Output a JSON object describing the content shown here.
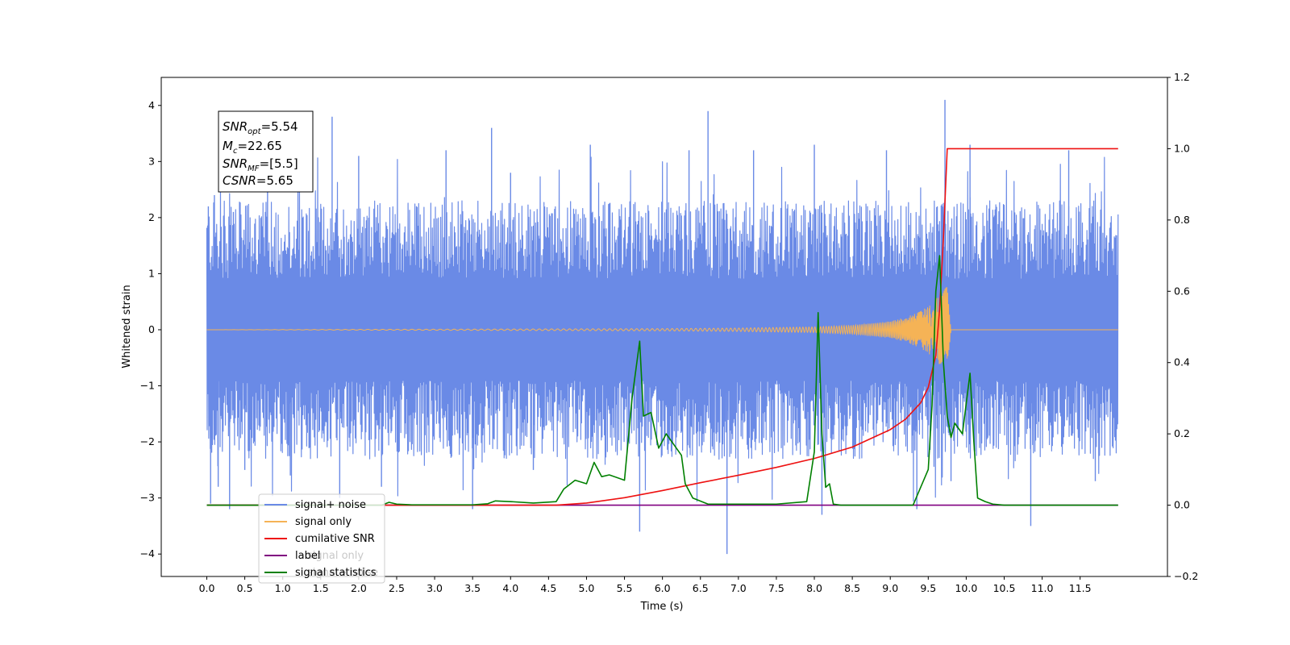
{
  "chart_data": {
    "type": "line",
    "xlabel": "Time (s)",
    "ylabel": "Whitened strain",
    "x_ticks": [
      "0.0",
      "0.5",
      "1.0",
      "1.5",
      "2.0",
      "2.5",
      "3.0",
      "3.5",
      "4.0",
      "4.5",
      "5.0",
      "5.5",
      "6.0",
      "6.5",
      "7.0",
      "7.5",
      "8.0",
      "8.5",
      "9.0",
      "9.5",
      "10.0",
      "10.5",
      "11.0",
      "11.5"
    ],
    "xlim": [
      -0.6,
      12.65
    ],
    "ylim_left": [
      -4.4,
      4.5
    ],
    "yticks_left": [
      "4",
      "3",
      "2",
      "1",
      "0",
      "−1",
      "−2",
      "−3",
      "−4"
    ],
    "ylim_right": [
      -0.2,
      1.2
    ],
    "yticks_right": [
      "1.2",
      "1.0",
      "0.8",
      "0.6",
      "0.4",
      "0.2",
      "0.0",
      "−0.2"
    ],
    "annotation": {
      "line1": {
        "base": "SNR",
        "sub": "opt",
        "rest": "=5.54"
      },
      "line2": {
        "base": "M",
        "sub": "c",
        "rest": "=22.65"
      },
      "line3": {
        "base": "SNR",
        "sub": "MF",
        "rest": "=[5.5]"
      },
      "line4": {
        "base": "CSNR",
        "sub": "",
        "rest": "=5.65"
      }
    },
    "legend": {
      "placement": "lower-left",
      "entries": [
        "signal+ noise",
        "signal only",
        "cumilative SNR",
        "label",
        "signal statistics"
      ],
      "hidden_overlaps": [
        "signal only",
        "signal+ noise"
      ]
    },
    "colors": {
      "noise": "#6a8ae6",
      "signal": "#f5b356",
      "snr": "#ee1111",
      "label": "#800080",
      "stats": "#008000"
    },
    "series": [
      {
        "name": "signal+ noise",
        "axis": "left",
        "x_range": [
          0.0,
          12.0
        ],
        "typical_range": [
          -2.2,
          2.4
        ],
        "spikes": [
          [
            0.02,
            2.2
          ],
          [
            0.05,
            -3.1
          ],
          [
            0.1,
            2.4
          ],
          [
            0.15,
            -2.8
          ],
          [
            0.3,
            -3.2
          ],
          [
            0.35,
            2.1
          ],
          [
            0.5,
            -2.5
          ],
          [
            0.8,
            3.4
          ],
          [
            1.1,
            -2.6
          ],
          [
            1.65,
            3.8
          ],
          [
            1.75,
            -3.0
          ],
          [
            2.0,
            3.1
          ],
          [
            2.3,
            -2.8
          ],
          [
            3.15,
            3.2
          ],
          [
            3.5,
            -3.2
          ],
          [
            3.75,
            3.6
          ],
          [
            4.0,
            2.8
          ],
          [
            4.3,
            -2.5
          ],
          [
            5.05,
            3.3
          ],
          [
            5.7,
            -3.6
          ],
          [
            6.35,
            3.2
          ],
          [
            6.6,
            3.9
          ],
          [
            6.85,
            -4.0
          ],
          [
            7.2,
            3.2
          ],
          [
            8.0,
            3.3
          ],
          [
            8.1,
            -3.3
          ],
          [
            8.95,
            3.2
          ],
          [
            9.35,
            -3.2
          ],
          [
            9.72,
            4.1
          ],
          [
            9.8,
            -2.7
          ],
          [
            10.05,
            3.3
          ],
          [
            10.85,
            -3.5
          ],
          [
            11.35,
            3.2
          ],
          [
            11.7,
            -2.7
          ]
        ]
      },
      {
        "name": "signal only",
        "axis": "left",
        "x": [
          0.0,
          6.0,
          7.0,
          8.0,
          8.5,
          9.0,
          9.2,
          9.4,
          9.5,
          9.6,
          9.7,
          9.75,
          9.8,
          12.0
        ],
        "envelope": [
          0.0,
          0.02,
          0.03,
          0.05,
          0.08,
          0.15,
          0.22,
          0.33,
          0.42,
          0.55,
          0.7,
          0.78,
          0.0,
          0.0
        ]
      },
      {
        "name": "cumilative SNR",
        "axis": "right",
        "x": [
          0.0,
          4.6,
          5.0,
          5.5,
          6.0,
          6.5,
          7.0,
          7.5,
          8.0,
          8.5,
          9.0,
          9.2,
          9.4,
          9.5,
          9.6,
          9.65,
          9.7,
          9.75,
          12.0
        ],
        "values": [
          0.0,
          0.0,
          0.006,
          0.021,
          0.041,
          0.063,
          0.084,
          0.106,
          0.131,
          0.163,
          0.212,
          0.241,
          0.287,
          0.33,
          0.42,
          0.55,
          0.75,
          1.0,
          1.0
        ]
      },
      {
        "name": "label",
        "axis": "right",
        "x": [
          0.0,
          12.0
        ],
        "values": [
          0.0,
          0.0
        ]
      },
      {
        "name": "signal statistics",
        "axis": "right",
        "x": [
          0.0,
          2.3,
          2.4,
          2.5,
          2.7,
          3.5,
          3.7,
          3.8,
          4.0,
          4.3,
          4.6,
          4.7,
          4.85,
          5.0,
          5.1,
          5.2,
          5.3,
          5.5,
          5.6,
          5.7,
          5.75,
          5.85,
          5.95,
          6.05,
          6.15,
          6.25,
          6.3,
          6.4,
          6.6,
          7.5,
          7.9,
          8.0,
          8.05,
          8.1,
          8.15,
          8.2,
          8.25,
          8.35,
          8.5,
          9.3,
          9.4,
          9.5,
          9.55,
          9.6,
          9.65,
          9.7,
          9.75,
          9.8,
          9.85,
          9.95,
          10.05,
          10.1,
          10.15,
          10.25,
          10.35,
          10.5,
          12.0
        ],
        "values": [
          0.0,
          0.0,
          0.008,
          0.003,
          0.001,
          0.001,
          0.004,
          0.012,
          0.01,
          0.006,
          0.01,
          0.045,
          0.07,
          0.06,
          0.12,
          0.08,
          0.085,
          0.07,
          0.3,
          0.46,
          0.25,
          0.26,
          0.16,
          0.2,
          0.17,
          0.14,
          0.06,
          0.02,
          0.003,
          0.003,
          0.01,
          0.15,
          0.54,
          0.2,
          0.05,
          0.06,
          0.003,
          0.0,
          0.0,
          0.0,
          0.05,
          0.1,
          0.28,
          0.6,
          0.7,
          0.4,
          0.25,
          0.19,
          0.23,
          0.2,
          0.37,
          0.18,
          0.02,
          0.01,
          0.003,
          0.0,
          0.0
        ]
      }
    ]
  }
}
